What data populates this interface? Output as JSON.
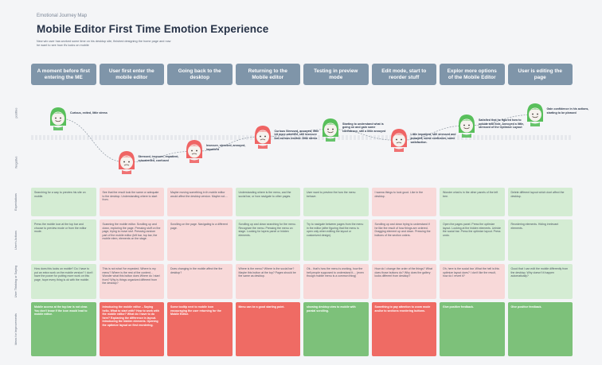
{
  "header": {
    "tag": "Emotional Journey Map",
    "title": "Mobile Editor First Time Emotion Experience",
    "intro": "New wix user has worked some time on his desktop site, finished designing the home page and now he want to see how it's looks on mobile"
  },
  "stages": [
    "A moment before first entering the ME",
    "User first enter the mobile editor",
    "Going back to the desktop",
    "Returning to the Mobile editor",
    "Testing in preview mode",
    "Edit mode, start to reorder stuff",
    "Explor more options of the Mobile Editor",
    "User is editing the page"
  ],
  "row_labels": {
    "positive": "positive",
    "negative": "Negative",
    "expectations": "Expectations",
    "actions": "User's Actions",
    "thinking": "User Thinking or Saying",
    "ideas": "Ideas for Improvements"
  },
  "emotions": {
    "levels": [
      0.85,
      0.25,
      0.4,
      0.6,
      0.7,
      0.55,
      0.75,
      0.9
    ],
    "moods": [
      "happy",
      "sad",
      "sad",
      "sad",
      "happy",
      "sad",
      "happy",
      "happy"
    ],
    "notes": [
      "Curious, exited, little stress",
      "Stressed, insecure, impatient, misoriented, confused",
      "Insecure, stressed, annoyed, impatient",
      "Curious Stressed, annoyed, little bit more oriented, still insecure but curious excited. little stress",
      "Starting to understand what is going on and gain some confidence, still a little annoyed",
      "Little impatient, still stressed and annoyed, some confusion, some satisfaction.",
      "Satisfied that he figured how to unhide and hide, Annoyed a little, stressed of the Optimize Layout",
      "Gain confidence in his actions, starting to be pleased"
    ],
    "colors": {
      "happy": "#58bf5b",
      "sad": "#ef6464",
      "skin": "#f6f2ee",
      "line": "#9aa3ad"
    }
  },
  "rows": {
    "expectations": [
      "Searching for a way to preview his site on mobile.",
      "See that the result look the same or adequate to the desktop. Understanding where to start from.",
      "Maybe moving something in th mobile editor would affect the desktop version. Maybe not....",
      "Understanding where is the menu, and the social bar, or how navigate to other pages.",
      "User want to preview the how the menu behave.",
      "I wanna things to look good. Like in the desktop.",
      "Wonder what is in the other panels of the left tree.",
      "Delete different layout which dont affect the desktop."
    ],
    "actions": [
      "Press the mobile icon at the top bar and choose to preview mode or from the editor mode.",
      "Scanning the mobile editor. Scrolling up and down, exploring the page. Pressing stuff on the page, trying to move stuf. Pressing random part of the mobile editor (left bar, top bar, the mobile elem, elements on the stage.",
      "Scrolling on the page. Navigating to a different page.",
      "Scrolling up and down searching for the menu. Recognize the menu. Pressing the menu on stage. Looking for layers panel or hidden elements.",
      "Try to navigate between pages from the menu in the editor (after figuring that the menu is open only when editing the layout or customized design).",
      "Scrolling up and down trying to understand if he like the result of how things are ordered. Dragging element up and down. Pressing the buttons of the section orders.",
      "Open the pages panel. Press the optimize layout. Looking at the hidden elements. Unhide the social bar. Press the optimize layout. Press undo.",
      "Reordering elements. Hiding irrelevant elements."
    ],
    "thinking": [
      "How does this looks on mobile? Do I have to put an extra work on the mobile version? I don't have the power for putting more work on this page, hope every thing is ok with the mobile.",
      "This is not what I've expected. Where is my menu? Where is the rest of the content... Wonder what this button does Where do I start from? Why is things organized different from the desktop?",
      "Does changing in the mobile affect the the desktop?",
      "Where is the menu? Where is the social bar? Maybe this button at the top? Pages should be the same as desktop.",
      "Ok... that's how the menu is working, how the hell people supposed to understand it.... (even though mobile menu is a common thing)",
      "How do I change the order of the things? What does those buttons do? Why does the gallery looks different from desktop?",
      "Oh, here is the social bar. What the hell is this optimize layout does? I don't like the result, how do I revert it?",
      "Good that I can edit the mobile differently from the desktop. Why doesn't it happen automatically?"
    ],
    "ideas": [
      "Mobile access at the top bar is not clear. You don't know if the icon would lead to mobile editor.",
      "Introducing the mobile editor – Saying hello, What to start with? How to work with the mobile editor? What do I have to do here? Explaning the difference in layout. Introducing the hidden elements. Opening the optimize layout on first reordering.",
      "Some tooltip next to mobile icon encouraging the user returning for the Mobile Editor.",
      "Menu can be a good starting point.",
      "showing desktop view to mobile with paralal scrolling.",
      "Something to pay attention to zoom mode and/or to sections reordering buttons.",
      "Give positive feedback.",
      "Give positive feedback."
    ],
    "expectations_moods": [
      "green",
      "pink",
      "pink",
      "green",
      "green",
      "pink",
      "green",
      "green"
    ],
    "actions_moods": [
      "green",
      "pink",
      "pink",
      "green",
      "green",
      "pink",
      "green",
      "green"
    ],
    "thinking_moods": [
      "green",
      "pink",
      "pink",
      "pink",
      "pink",
      "pink",
      "pink",
      "green"
    ],
    "ideas_moods": [
      "g-strong",
      "r-strong",
      "r-strong",
      "r-strong",
      "g-strong",
      "r-strong",
      "g-strong",
      "g-strong"
    ]
  }
}
